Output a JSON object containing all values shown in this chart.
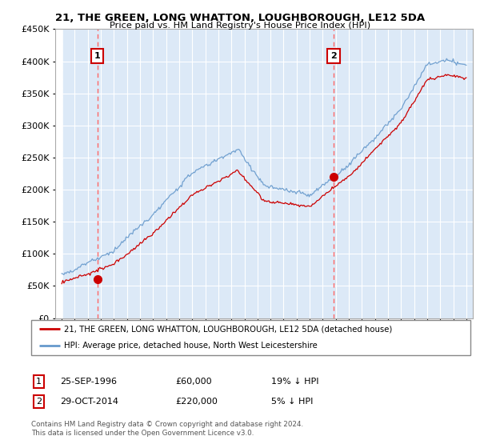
{
  "title": "21, THE GREEN, LONG WHATTON, LOUGHBOROUGH, LE12 5DA",
  "subtitle": "Price paid vs. HM Land Registry's House Price Index (HPI)",
  "legend_line1": "21, THE GREEN, LONG WHATTON, LOUGHBOROUGH, LE12 5DA (detached house)",
  "legend_line2": "HPI: Average price, detached house, North West Leicestershire",
  "annotation1_date": "25-SEP-1996",
  "annotation1_price": "£60,000",
  "annotation1_hpi": "19% ↓ HPI",
  "annotation2_date": "29-OCT-2014",
  "annotation2_price": "£220,000",
  "annotation2_hpi": "5% ↓ HPI",
  "footnote": "Contains HM Land Registry data © Crown copyright and database right 2024.\nThis data is licensed under the Open Government Licence v3.0.",
  "sale1_year": 1996.73,
  "sale1_price": 60000,
  "sale2_year": 2014.83,
  "sale2_price": 220000,
  "red_color": "#cc0000",
  "blue_color": "#6699cc",
  "bg_color": "#dce9f7",
  "hatch_color": "#b0c4d8",
  "ylim_min": 0,
  "ylim_max": 450000,
  "xlim_min": 1993.5,
  "xlim_max": 2025.5
}
